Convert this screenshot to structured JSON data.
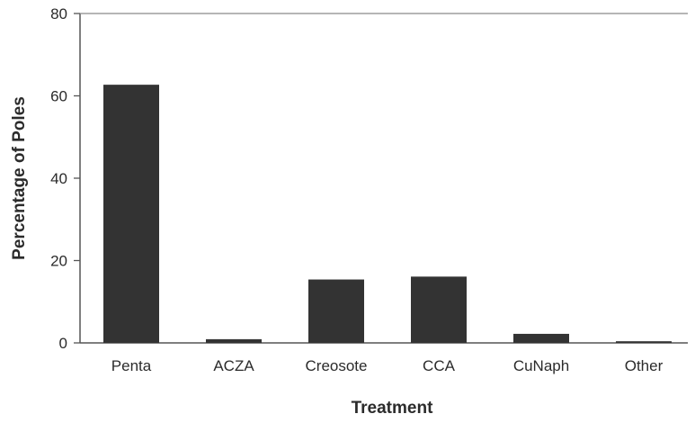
{
  "chart_data": {
    "type": "bar",
    "title": "",
    "xlabel": "Treatment",
    "ylabel": "Percentage of Poles",
    "categories": [
      "Penta",
      "ACZA",
      "Creosote",
      "CCA",
      "CuNaph",
      "Other"
    ],
    "values": [
      62.7,
      0.9,
      15.4,
      16.1,
      2.2,
      0.4
    ],
    "ylim": [
      0,
      80
    ],
    "yticks": [
      0,
      20,
      40,
      60,
      80
    ],
    "ytick_labels": [
      "0",
      "20",
      "40",
      "60",
      "80"
    ],
    "grid": false,
    "legend": "none",
    "bar_color": "#333333",
    "axis_color": "#555555"
  }
}
